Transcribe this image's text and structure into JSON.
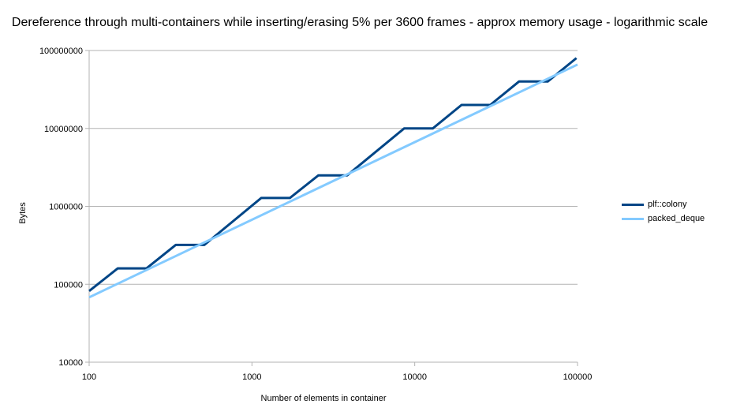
{
  "chart_data": {
    "type": "line",
    "title": "Dereference through multi-containers while inserting/erasing 5% per 3600 frames - approx memory usage - logarithmic scale",
    "xlabel": "Number of elements in container",
    "ylabel": "Bytes",
    "x_scale": "log",
    "y_scale": "log",
    "xlim": [
      100,
      100000
    ],
    "ylim": [
      10000,
      100000000
    ],
    "x_ticks": [
      "100",
      "1000",
      "10000",
      "100000"
    ],
    "y_ticks": [
      "10000",
      "100000",
      "1000000",
      "10000000",
      "100000000"
    ],
    "grid": "horizontal",
    "legend_position": "right",
    "series": [
      {
        "name": "plf::colony",
        "color": "#004586",
        "x": [
          100,
          150,
          225,
          340,
          510,
          1140,
          1710,
          2560,
          3850,
          8600,
          12900,
          19400,
          29100,
          43700,
          65600,
          98400
        ],
        "y": [
          82000,
          160000,
          160000,
          320000,
          320000,
          1280000,
          1280000,
          2500000,
          2500000,
          10000000,
          10000000,
          20000000,
          20000000,
          40000000,
          40000000,
          80000000
        ]
      },
      {
        "name": "packed_deque",
        "color": "#83caff",
        "x": [
          100,
          100000
        ],
        "y": [
          68000,
          66000000
        ]
      }
    ]
  }
}
